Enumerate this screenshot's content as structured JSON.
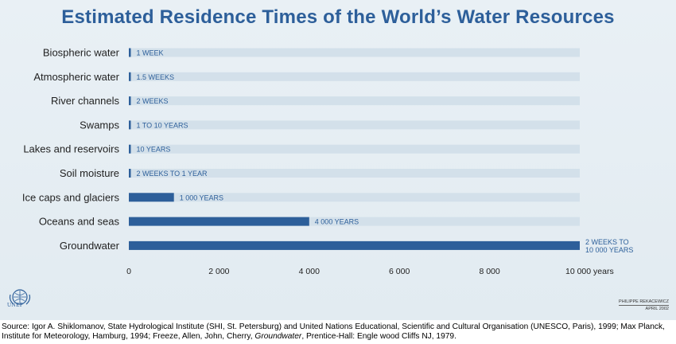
{
  "title": "Estimated Residence Times of the World’s Water Resources",
  "chart_data": {
    "type": "bar",
    "orientation": "horizontal",
    "title": "Estimated Residence Times of the World’s Water Resources",
    "xlabel": "",
    "ylabel": "",
    "x_unit_label": "years",
    "xlim": [
      0,
      10000
    ],
    "x_ticks": [
      0,
      2000,
      4000,
      6000,
      8000,
      10000
    ],
    "x_tick_labels": [
      "0",
      "2 000",
      "4 000",
      "6 000",
      "8 000",
      "10 000 years"
    ],
    "grid": false,
    "categories": [
      "Biospheric water",
      "Atmospheric water",
      "River channels",
      "Swamps",
      "Lakes and reservoirs",
      "Soil moisture",
      "Ice caps and glaciers",
      "Oceans and seas",
      "Groundwater"
    ],
    "values": [
      0.02,
      0.03,
      0.04,
      10,
      10,
      1,
      1000,
      4000,
      10000
    ],
    "data_labels": [
      [
        "1 WEEK"
      ],
      [
        "1.5 WEEKS"
      ],
      [
        "2 WEEKS"
      ],
      [
        "1 TO 10 YEARS"
      ],
      [
        "10 YEARS"
      ],
      [
        "2 WEEKS TO 1 YEAR"
      ],
      [
        "1 000 YEARS"
      ],
      [
        "4 000 YEARS"
      ],
      [
        "2 WEEKS TO",
        "10 000 YEARS"
      ]
    ],
    "colors": {
      "bar": "#2d5f9a",
      "row_band": "#d3e0ea",
      "title": "#2d5f9a",
      "background": "#e6eef4"
    }
  },
  "logo": {
    "text": "UNEP"
  },
  "credit": {
    "name": "PHILIPPE REKACEWICZ",
    "date": "APRIL 2002"
  },
  "source": {
    "part1": "Source: Igor A. Shiklomanov, State Hydrological Institute (SHI, St. Petersburg) and United Nations Educational, Scientific and Cultural Organisation (UNESCO, Paris), 1999; Max Planck, Institute for Meteorology, Hamburg, 1994; Freeze, Allen, John, Cherry, ",
    "italic": "Groundwater",
    "part2": ", Prentice-Hall: Engle wood Cliffs NJ, 1979."
  }
}
